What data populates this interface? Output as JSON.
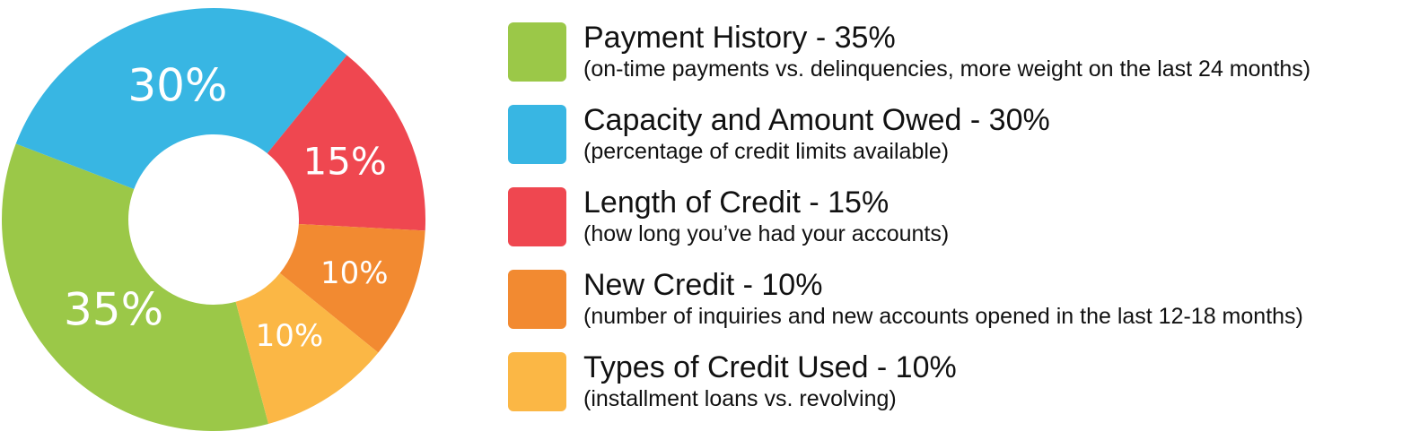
{
  "chart_data": {
    "type": "pie",
    "donut": true,
    "categories": [
      "Payment History",
      "Capacity and Amount Owed",
      "Length of Credit",
      "New Credit",
      "Types of Credit Used"
    ],
    "values": [
      35,
      30,
      15,
      10,
      10
    ],
    "slice_labels": [
      "35%",
      "30%",
      "15%",
      "10%",
      "10%"
    ],
    "colors": [
      "#9bc848",
      "#38b6e3",
      "#ef4750",
      "#f28a31",
      "#fbb745"
    ],
    "legend_placement": "right",
    "legend": [
      {
        "title": "Payment History - 35%",
        "desc": "(on-time payments vs. delinquencies, more weight on the last 24 months)"
      },
      {
        "title": "Capacity and Amount Owed - 30%",
        "desc": "(percentage of credit limits available)"
      },
      {
        "title": "Length of Credit - 15%",
        "desc": "(how long you’ve had your accounts)"
      },
      {
        "title": "New Credit - 10%",
        "desc": "(number of inquiries and new accounts opened in the last 12-18 months)"
      },
      {
        "title": "Types of Credit Used - 10%",
        "desc": "(installment loans vs. revolving)"
      }
    ]
  }
}
